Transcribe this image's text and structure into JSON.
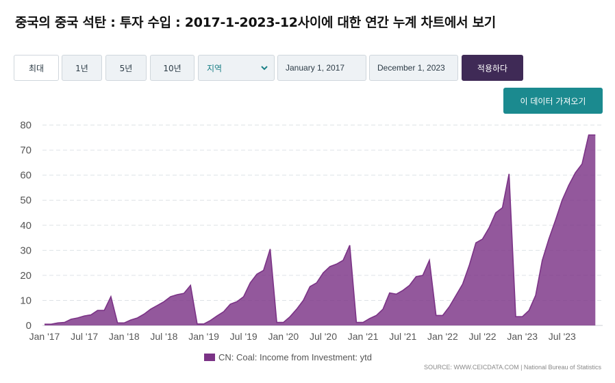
{
  "title": "중국의 중국 석탄 : 투자 수입 : 2017-1-2023-12사이에 대한 연간 누계 차트에서 보기",
  "controls": {
    "range_buttons": [
      "최대",
      "1년",
      "5년",
      "10년"
    ],
    "region_select": "지역",
    "start_date": "January 1, 2017",
    "end_date": "December 1, 2023",
    "apply_label": "적용하다",
    "fetch_label": "이 데이터 가져오기"
  },
  "colors": {
    "series": "#7b3386",
    "apply": "#3f2a56",
    "fetch": "#1b8a8f"
  },
  "icons": {
    "select_arrow": "chevron-down-icon"
  },
  "legend": {
    "label": "CN: Coal: Income from Investment: ytd"
  },
  "source": "SOURCE: WWW.CEICDATA.COM | National Bureau of Statistics",
  "chart_data": {
    "type": "area",
    "title": "",
    "xlabel": "",
    "ylabel": "",
    "ylim": [
      0,
      80
    ],
    "yticks": [
      0,
      10,
      20,
      30,
      40,
      50,
      60,
      70,
      80
    ],
    "xtick_labels": [
      "Jan '17",
      "Jul '17",
      "Jan '18",
      "Jul '18",
      "Jan '19",
      "Jul '19",
      "Jan '20",
      "Jul '20",
      "Jan '21",
      "Jul '21",
      "Jan '22",
      "Jul '22",
      "Jan '23",
      "Jul '23"
    ],
    "grid": true,
    "legend_position": "bottom-center",
    "series": [
      {
        "name": "CN: Coal: Income from Investment: ytd",
        "x": [
          "2017-01",
          "2017-02",
          "2017-03",
          "2017-04",
          "2017-05",
          "2017-06",
          "2017-07",
          "2017-08",
          "2017-09",
          "2017-10",
          "2017-11",
          "2017-12",
          "2018-01",
          "2018-02",
          "2018-03",
          "2018-04",
          "2018-05",
          "2018-06",
          "2018-07",
          "2018-08",
          "2018-09",
          "2018-10",
          "2018-11",
          "2018-12",
          "2019-01",
          "2019-02",
          "2019-03",
          "2019-04",
          "2019-05",
          "2019-06",
          "2019-07",
          "2019-08",
          "2019-09",
          "2019-10",
          "2019-11",
          "2019-12",
          "2020-01",
          "2020-02",
          "2020-03",
          "2020-04",
          "2020-05",
          "2020-06",
          "2020-07",
          "2020-08",
          "2020-09",
          "2020-10",
          "2020-11",
          "2020-12",
          "2021-01",
          "2021-02",
          "2021-03",
          "2021-04",
          "2021-05",
          "2021-06",
          "2021-07",
          "2021-08",
          "2021-09",
          "2021-10",
          "2021-11",
          "2021-12",
          "2022-01",
          "2022-02",
          "2022-03",
          "2022-04",
          "2022-05",
          "2022-06",
          "2022-07",
          "2022-08",
          "2022-09",
          "2022-10",
          "2022-11",
          "2022-12",
          "2023-01",
          "2023-02",
          "2023-03",
          "2023-04",
          "2023-05",
          "2023-06",
          "2023-07",
          "2023-08",
          "2023-09",
          "2023-10",
          "2023-11",
          "2023-12"
        ],
        "values": [
          0.5,
          0.5,
          1.0,
          1.2,
          2.5,
          3.0,
          3.8,
          4.2,
          6.0,
          6.0,
          11.5,
          1.0,
          1.0,
          2.2,
          3.0,
          4.5,
          6.5,
          8.0,
          9.5,
          11.5,
          12.3,
          12.8,
          16.0,
          0.6,
          0.6,
          2.0,
          3.8,
          5.5,
          8.5,
          9.5,
          11.5,
          17.0,
          20.5,
          22.0,
          30.5,
          1.2,
          1.2,
          3.5,
          6.5,
          10.0,
          15.5,
          17.0,
          21.0,
          23.5,
          24.5,
          26.0,
          32.0,
          1.2,
          1.2,
          2.8,
          4.0,
          6.5,
          13.0,
          12.5,
          14.0,
          16.0,
          19.5,
          20.0,
          26.0,
          4.0,
          4.0,
          7.5,
          12.0,
          16.5,
          24.0,
          33.0,
          34.5,
          39.0,
          45.0,
          47.0,
          60.5,
          3.5,
          3.5,
          6.0,
          12.0,
          26.0,
          34.5,
          42.0,
          50.0,
          56.0,
          61.0,
          64.5,
          76.0,
          76.0
        ]
      }
    ]
  }
}
